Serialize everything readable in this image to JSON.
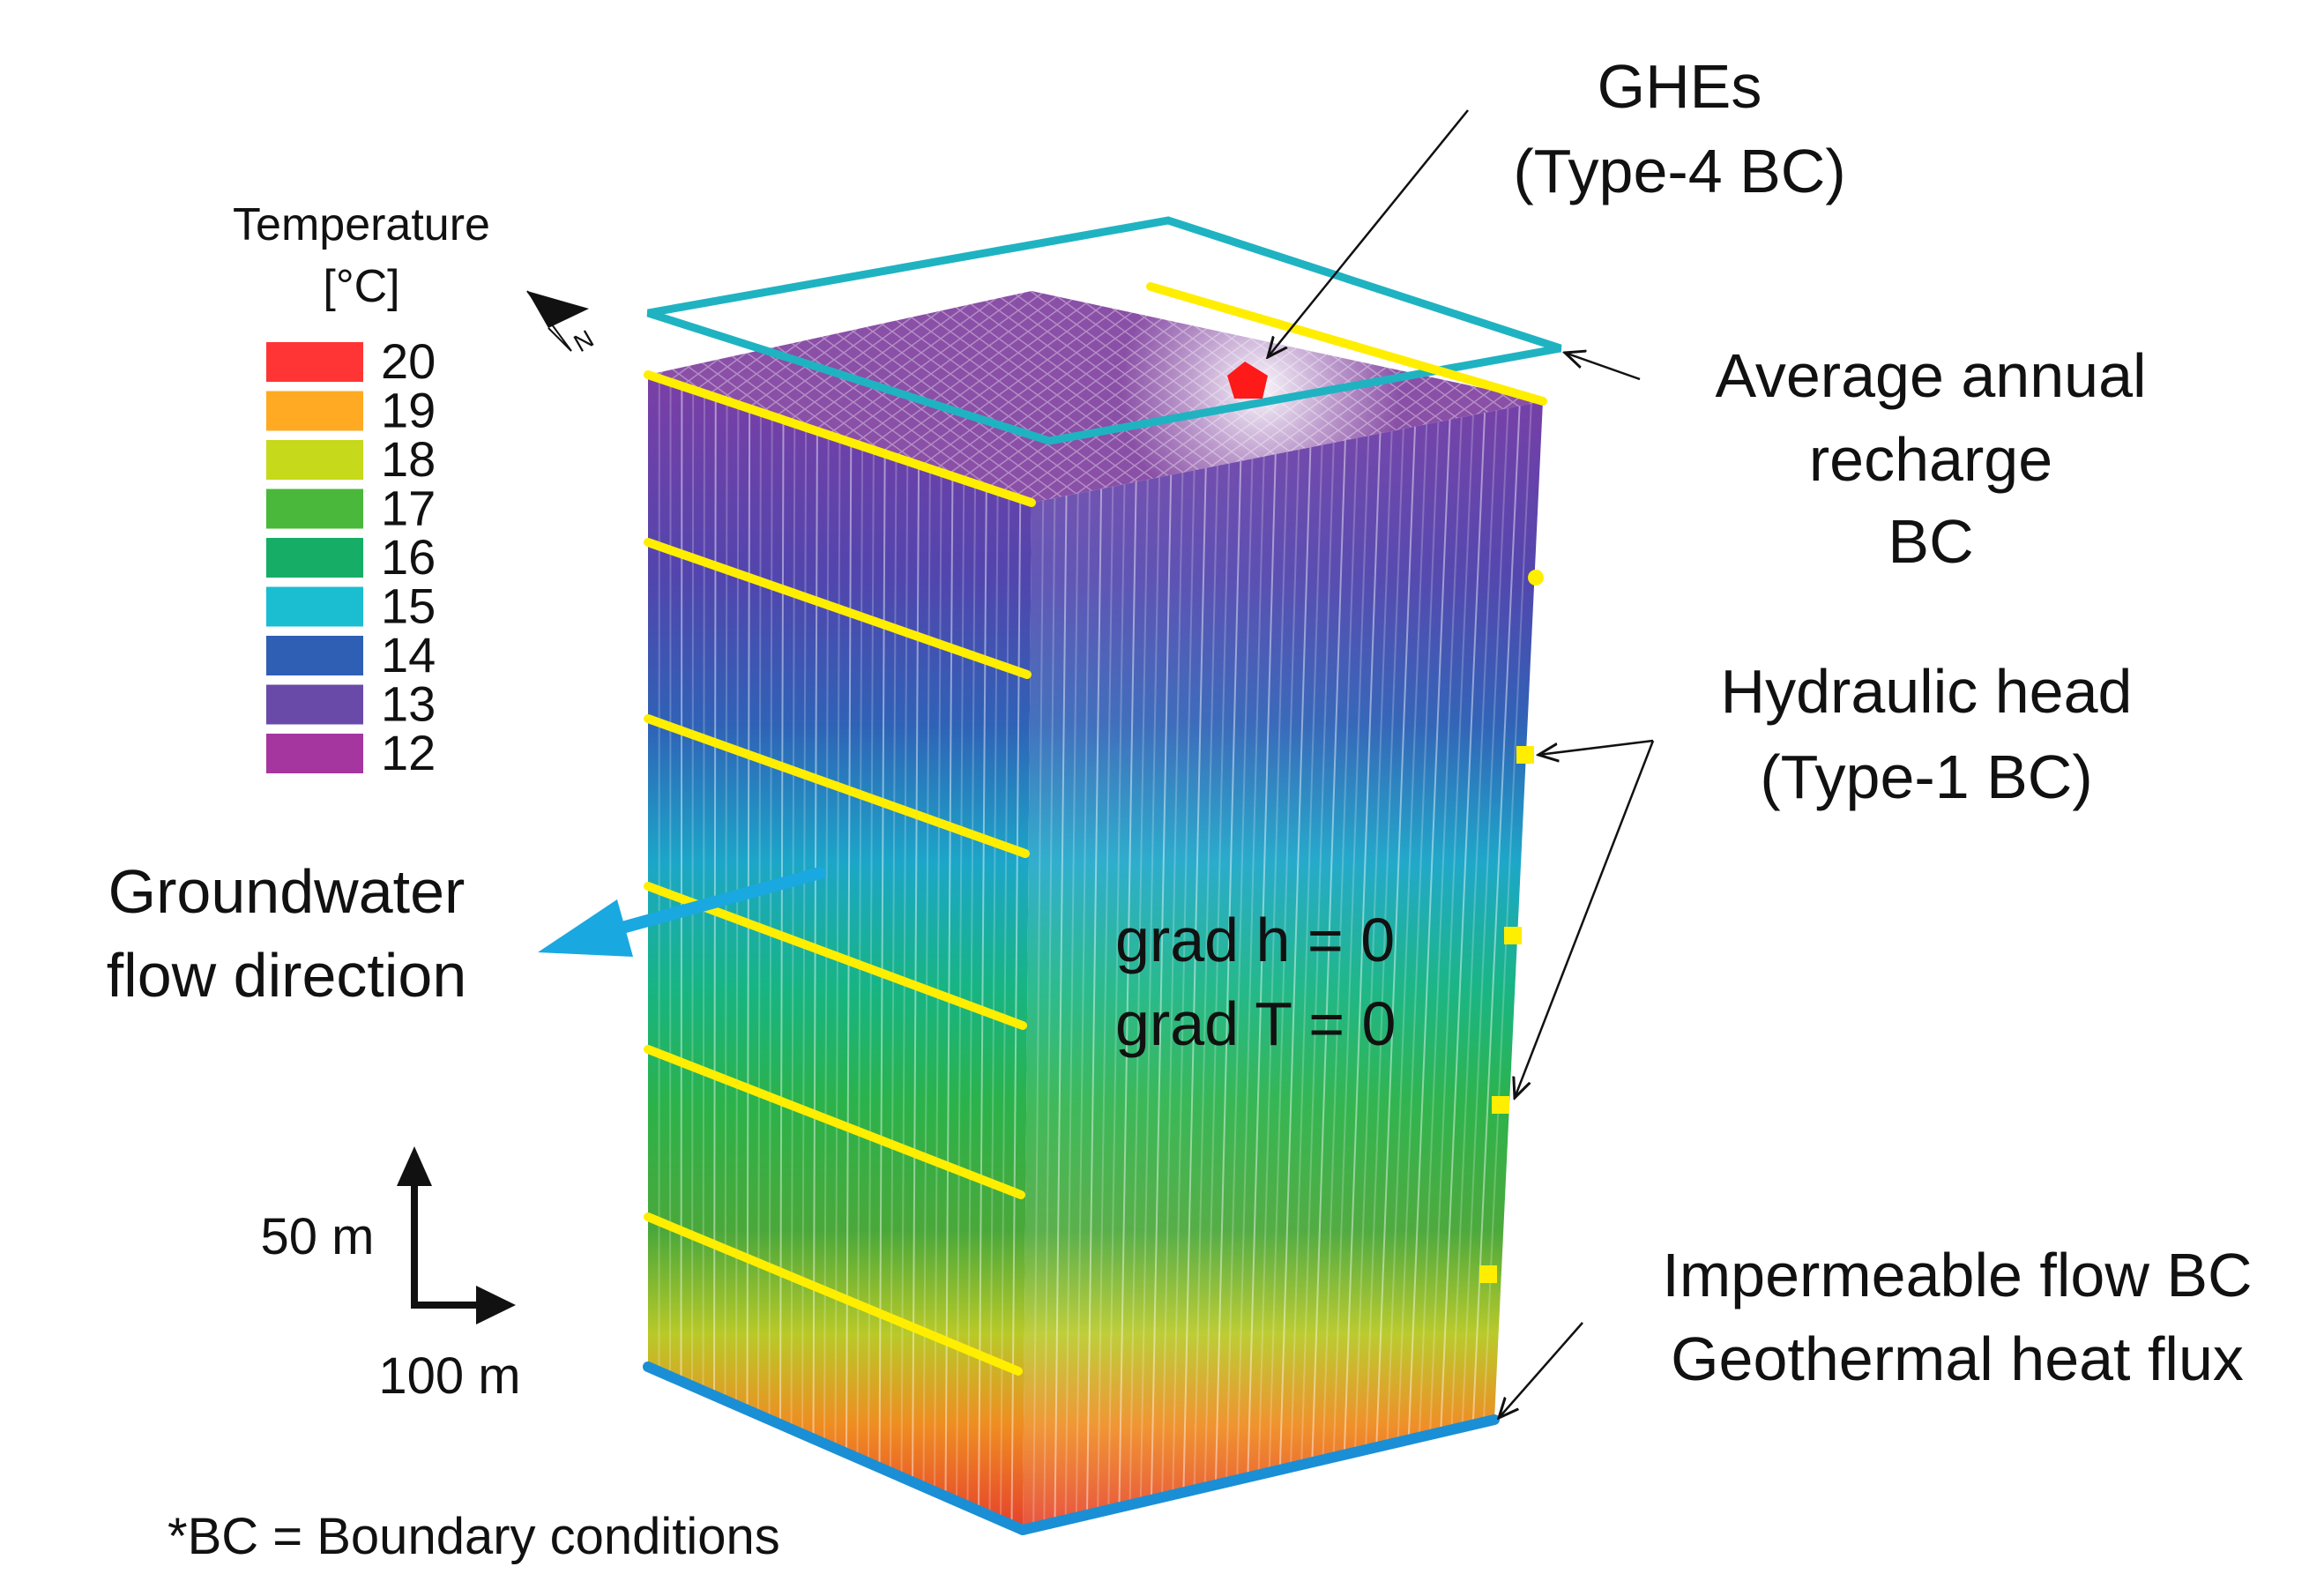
{
  "legend": {
    "title_line1": "Temperature",
    "title_line2": "[°C]",
    "items": [
      {
        "label": "20",
        "color": "#ff3535"
      },
      {
        "label": "19",
        "color": "#ffaa22"
      },
      {
        "label": "18",
        "color": "#c6d91a"
      },
      {
        "label": "17",
        "color": "#4ab83a"
      },
      {
        "label": "16",
        "color": "#16ad66"
      },
      {
        "label": "15",
        "color": "#1bbdd0"
      },
      {
        "label": "14",
        "color": "#2e5fb4"
      },
      {
        "label": "13",
        "color": "#6a4aa9"
      },
      {
        "label": "12",
        "color": "#a536a0"
      }
    ]
  },
  "labels": {
    "ghes_line1": "GHEs",
    "ghes_line2": "(Type-4 BC)",
    "recharge_line1": "Average annual",
    "recharge_line2": "recharge",
    "recharge_line3": "BC",
    "head_line1": "Hydraulic head",
    "head_line2": "(Type-1 BC)",
    "gw_line1": "Groundwater",
    "gw_line2": "flow direction",
    "grad_h": "grad h = 0",
    "grad_t": "grad T = 0",
    "bottom_line1": "Impermeable flow BC",
    "bottom_line2": "Geothermal heat flux",
    "scale_vertical": "50 m",
    "scale_horizontal": "100 m",
    "footnote": "*BC = Boundary conditions",
    "north": "N"
  },
  "colors": {
    "boundary_lines": "#ffee00",
    "recharge_frame": "#1fb3c2",
    "flow_arrow": "#1aa8e0",
    "base_edge": "#1a8fd6",
    "ghe_marker": "#ff1a1a",
    "top_face": "#8a4fa6"
  }
}
